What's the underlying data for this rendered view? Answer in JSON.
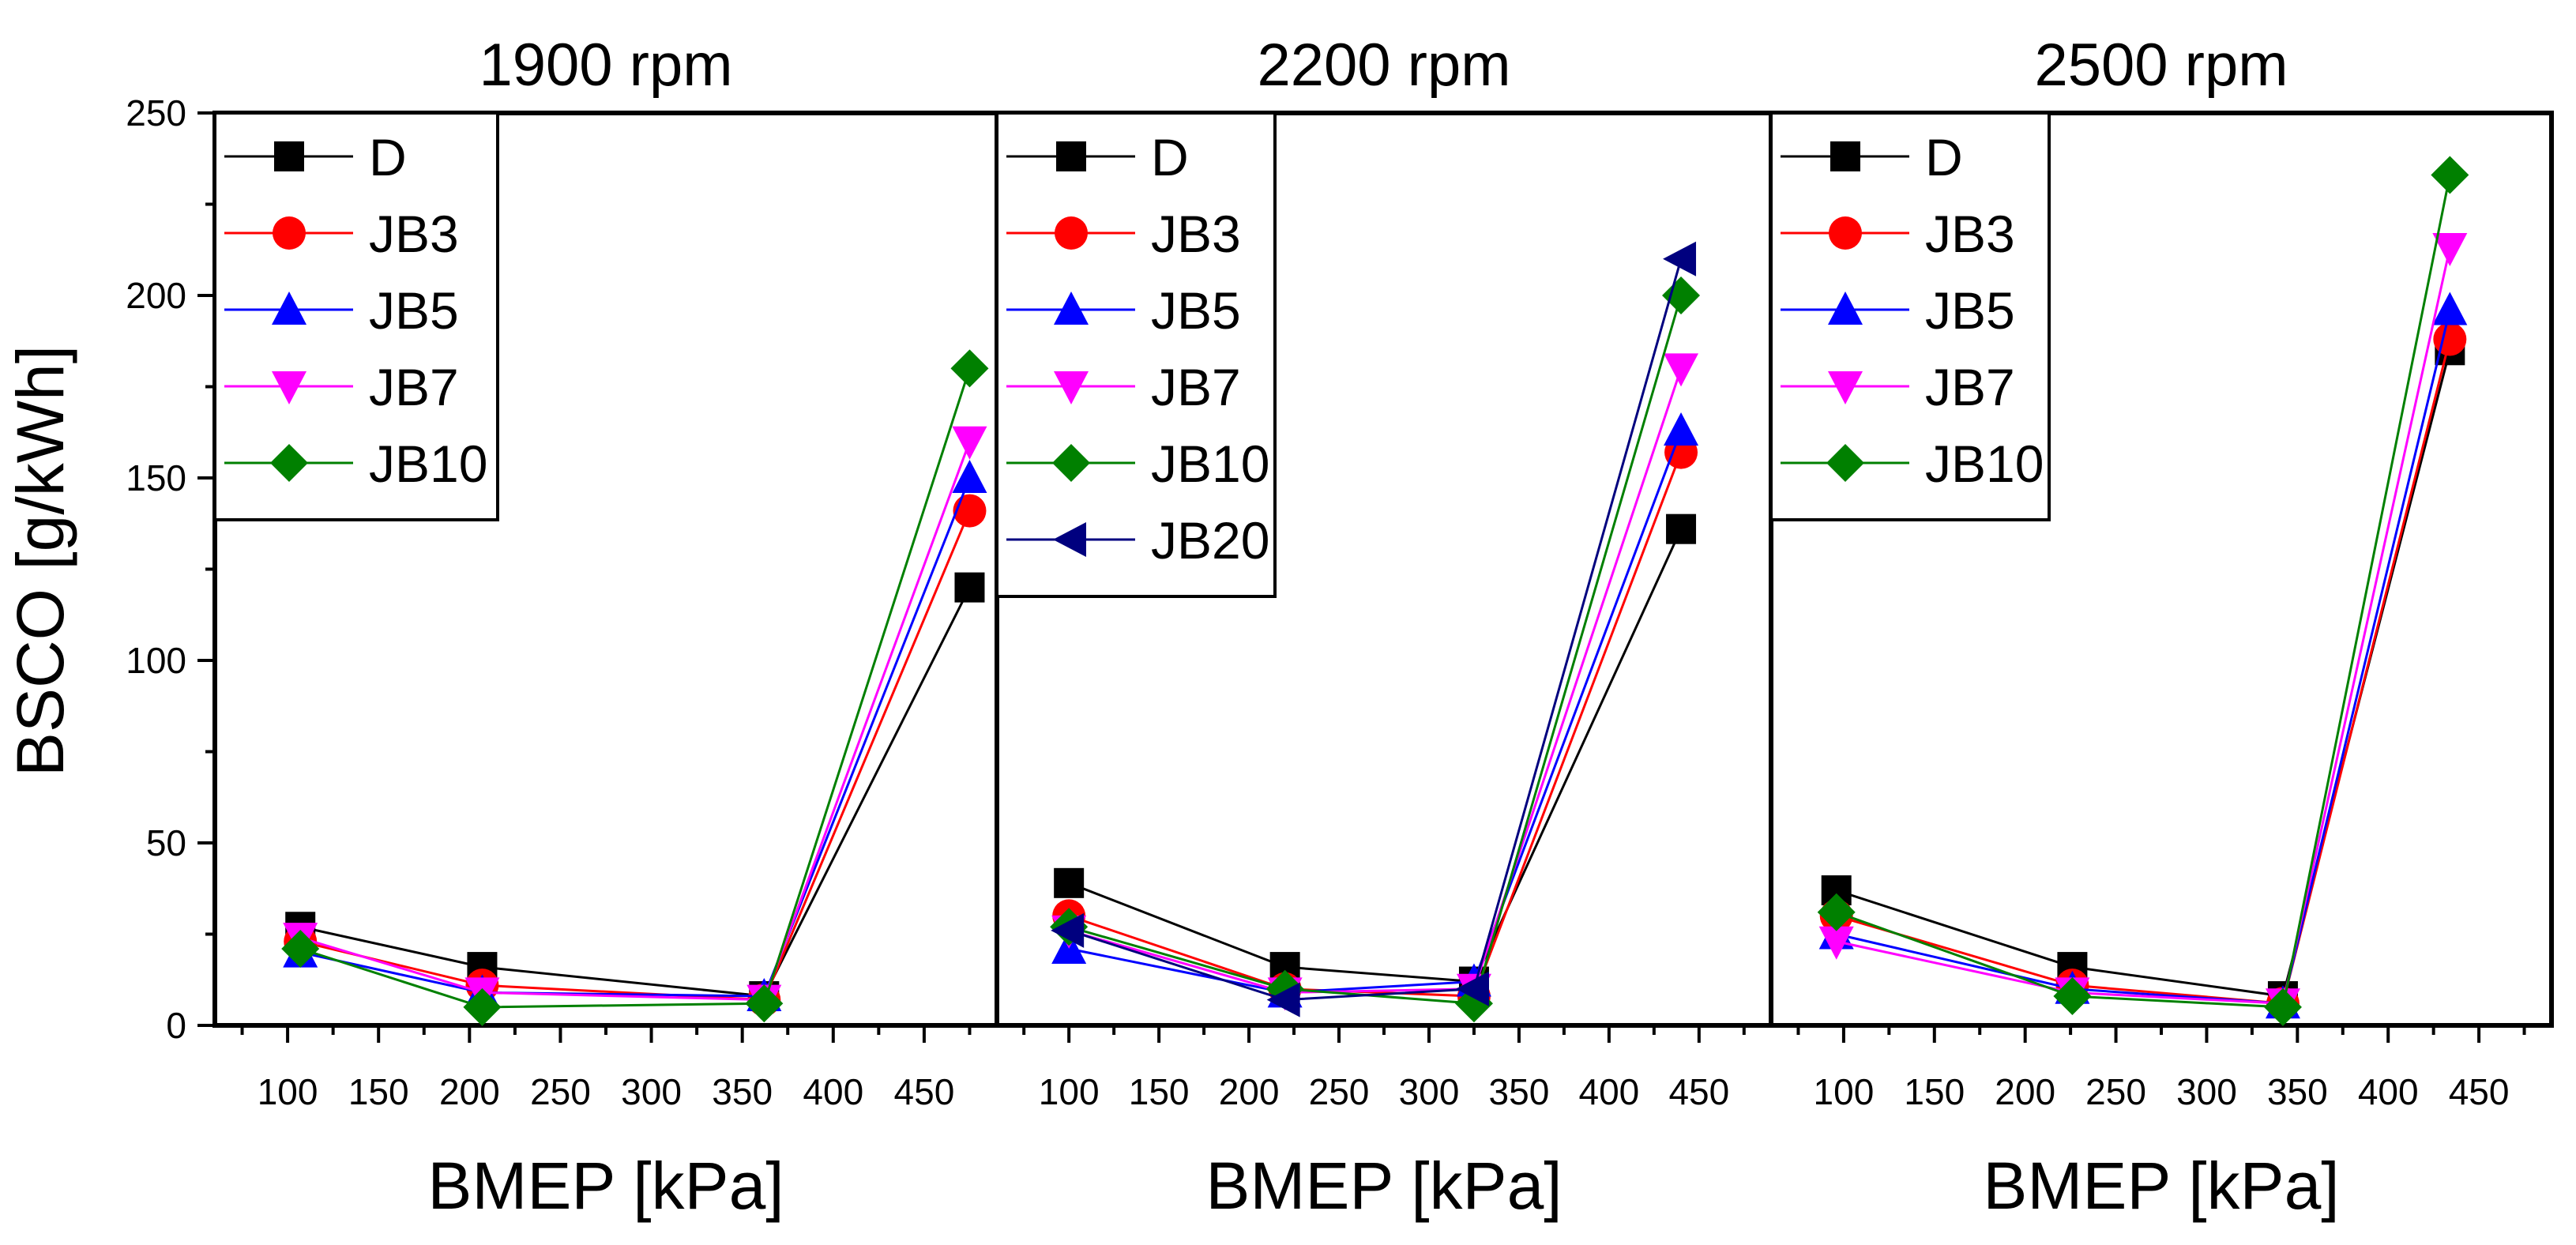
{
  "figure": {
    "ylabel": "BSCO [g/kWh]",
    "xlabel": "BMEP [kPa]"
  },
  "colors": {
    "D": "#000000",
    "JB3": "#ff0000",
    "JB5": "#0000ff",
    "JB7": "#ff00ff",
    "JB10": "#008000",
    "JB20": "#00007f"
  },
  "chart_data": [
    {
      "type": "line",
      "title": "1900 rpm",
      "xlabel": "BMEP [kPa]",
      "ylabel": "BSCO [g/kWh]",
      "xlim": [
        60,
        490
      ],
      "ylim": [
        0,
        250
      ],
      "xticks": [
        100,
        150,
        200,
        250,
        300,
        350,
        400,
        450
      ],
      "yticks": [
        0,
        50,
        100,
        150,
        200,
        250
      ],
      "legend": [
        "D",
        "JB3",
        "JB5",
        "JB7",
        "JB10"
      ],
      "series": [
        {
          "name": "D",
          "marker": "square",
          "x": [
            107,
            207,
            362,
            475
          ],
          "y": [
            27,
            16,
            8,
            120
          ]
        },
        {
          "name": "JB3",
          "marker": "circle",
          "x": [
            107,
            207,
            362,
            475
          ],
          "y": [
            23,
            11,
            7,
            141
          ]
        },
        {
          "name": "JB5",
          "marker": "triangle-up",
          "x": [
            107,
            207,
            362,
            475
          ],
          "y": [
            20,
            9,
            8,
            150
          ]
        },
        {
          "name": "JB7",
          "marker": "triangle-down",
          "x": [
            107,
            207,
            362,
            475
          ],
          "y": [
            24,
            9,
            7,
            160
          ]
        },
        {
          "name": "JB10",
          "marker": "diamond",
          "x": [
            107,
            207,
            362,
            475
          ],
          "y": [
            21,
            5,
            6,
            180
          ]
        }
      ]
    },
    {
      "type": "line",
      "title": "2200 rpm",
      "xlabel": "BMEP [kPa]",
      "ylabel": "BSCO [g/kWh]",
      "xlim": [
        60,
        490
      ],
      "ylim": [
        0,
        250
      ],
      "xticks": [
        100,
        150,
        200,
        250,
        300,
        350,
        400,
        450
      ],
      "yticks": [
        0,
        50,
        100,
        150,
        200,
        250
      ],
      "legend": [
        "D",
        "JB3",
        "JB5",
        "JB7",
        "JB10",
        "JB20"
      ],
      "series": [
        {
          "name": "D",
          "marker": "square",
          "x": [
            100,
            220,
            325,
            440
          ],
          "y": [
            39,
            16,
            12,
            136
          ]
        },
        {
          "name": "JB3",
          "marker": "circle",
          "x": [
            100,
            220,
            325,
            440
          ],
          "y": [
            30,
            10,
            8,
            157
          ]
        },
        {
          "name": "JB5",
          "marker": "triangle-up",
          "x": [
            100,
            220,
            325,
            440
          ],
          "y": [
            21,
            9,
            12,
            163
          ]
        },
        {
          "name": "JB7",
          "marker": "triangle-down",
          "x": [
            100,
            220,
            325,
            440
          ],
          "y": [
            26,
            9,
            10,
            180
          ]
        },
        {
          "name": "JB10",
          "marker": "diamond",
          "x": [
            100,
            220,
            325,
            440
          ],
          "y": [
            27,
            10,
            6,
            200
          ]
        },
        {
          "name": "JB20",
          "marker": "triangle-left",
          "x": [
            100,
            220,
            325,
            440
          ],
          "y": [
            26,
            7,
            10,
            210
          ]
        }
      ]
    },
    {
      "type": "line",
      "title": "2500 rpm",
      "xlabel": "BMEP [kPa]",
      "ylabel": "BSCO [g/kWh]",
      "xlim": [
        60,
        490
      ],
      "ylim": [
        0,
        250
      ],
      "xticks": [
        100,
        150,
        200,
        250,
        300,
        350,
        400,
        450
      ],
      "yticks": [
        0,
        50,
        100,
        150,
        200,
        250
      ],
      "legend": [
        "D",
        "JB3",
        "JB5",
        "JB7",
        "JB10"
      ],
      "series": [
        {
          "name": "D",
          "marker": "square",
          "x": [
            96,
            226,
            342,
            434
          ],
          "y": [
            37,
            16,
            8,
            185
          ]
        },
        {
          "name": "JB3",
          "marker": "circle",
          "x": [
            96,
            226,
            342,
            434
          ],
          "y": [
            30,
            11,
            6,
            188
          ]
        },
        {
          "name": "JB5",
          "marker": "triangle-up",
          "x": [
            96,
            226,
            342,
            434
          ],
          "y": [
            25,
            10,
            6,
            196
          ]
        },
        {
          "name": "JB7",
          "marker": "triangle-down",
          "x": [
            96,
            226,
            342,
            434
          ],
          "y": [
            23,
            9,
            6,
            213
          ]
        },
        {
          "name": "JB10",
          "marker": "diamond",
          "x": [
            96,
            226,
            342,
            434
          ],
          "y": [
            31,
            8,
            5,
            233
          ]
        }
      ]
    }
  ]
}
